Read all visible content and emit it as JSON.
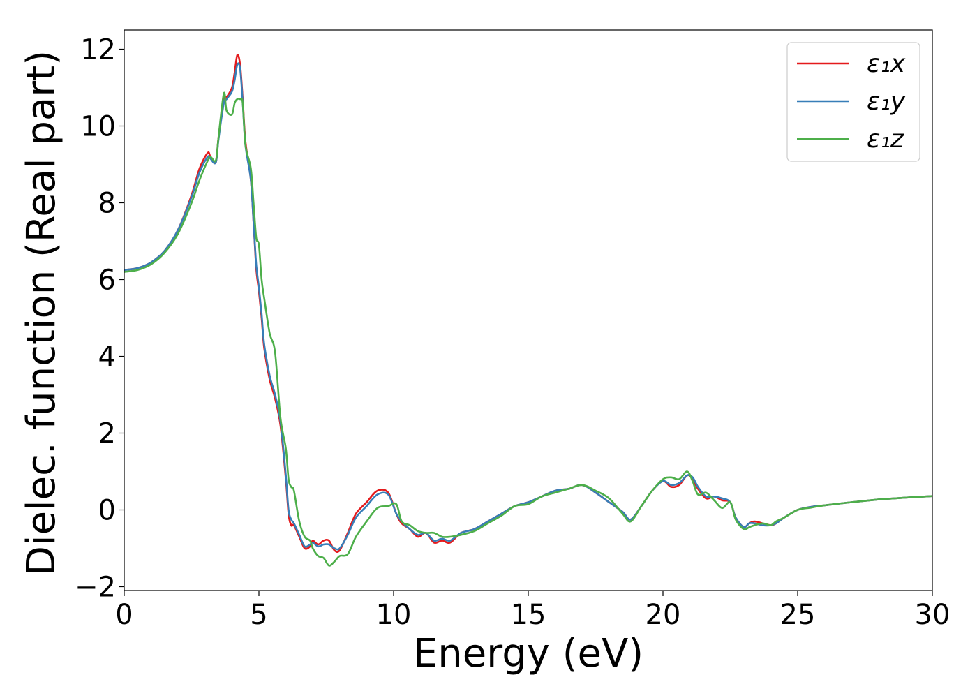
{
  "chart_data": {
    "type": "line",
    "xlabel": "Energy (eV)",
    "ylabel": "Dielec. function (Real part)",
    "xlim": [
      0,
      30
    ],
    "ylim": [
      -2.1,
      12.5
    ],
    "xticks": [
      0,
      5,
      10,
      15,
      20,
      25,
      30
    ],
    "yticks": [
      -2,
      0,
      2,
      4,
      6,
      8,
      10,
      12
    ],
    "xtick_labels": [
      "0",
      "5",
      "10",
      "15",
      "20",
      "25",
      "30"
    ],
    "ytick_labels": [
      "−2",
      "0",
      "2",
      "4",
      "6",
      "8",
      "10",
      "12"
    ],
    "grid": false,
    "legend_position": "top-right",
    "series": [
      {
        "name": "ε₁x",
        "color": "#e41a1c",
        "x": [
          0,
          0.5,
          1,
          1.5,
          2,
          2.5,
          2.8,
          3.1,
          3.2,
          3.4,
          3.5,
          3.7,
          3.8,
          4.0,
          4.1,
          4.2,
          4.3,
          4.4,
          4.5,
          4.7,
          4.8,
          4.9,
          5.0,
          5.1,
          5.2,
          5.4,
          5.6,
          5.8,
          6.0,
          6.1,
          6.2,
          6.3,
          6.5,
          6.7,
          6.9,
          7.0,
          7.2,
          7.4,
          7.6,
          7.8,
          8.0,
          8.3,
          8.6,
          9.0,
          9.4,
          9.8,
          10.1,
          10.3,
          10.6,
          10.9,
          11.2,
          11.5,
          11.8,
          12.1,
          12.5,
          13.0,
          13.5,
          14.0,
          14.5,
          15.0,
          15.5,
          16.0,
          16.5,
          17.0,
          17.5,
          18.0,
          18.5,
          18.8,
          19.2,
          19.6,
          20.0,
          20.3,
          20.6,
          20.9,
          21.1,
          21.3,
          21.6,
          21.9,
          22.2,
          22.5,
          22.7,
          23.0,
          23.2,
          23.4,
          23.7,
          24.0,
          24.2,
          24.5,
          25.0,
          25.5,
          26.0,
          27.0,
          28.0,
          29.0,
          30.0
        ],
        "y": [
          6.25,
          6.3,
          6.45,
          6.75,
          7.3,
          8.2,
          8.9,
          9.3,
          9.2,
          9.05,
          9.7,
          10.7,
          10.75,
          11.0,
          11.4,
          11.85,
          11.6,
          10.7,
          9.6,
          8.6,
          7.5,
          6.3,
          5.7,
          5.0,
          4.2,
          3.4,
          2.9,
          2.2,
          0.8,
          -0.1,
          -0.4,
          -0.4,
          -0.7,
          -1.0,
          -0.95,
          -0.8,
          -0.9,
          -0.8,
          -0.8,
          -1.05,
          -1.05,
          -0.6,
          -0.1,
          0.2,
          0.5,
          0.45,
          -0.1,
          -0.35,
          -0.5,
          -0.7,
          -0.6,
          -0.85,
          -0.8,
          -0.85,
          -0.6,
          -0.5,
          -0.3,
          -0.1,
          0.1,
          0.2,
          0.35,
          0.5,
          0.55,
          0.65,
          0.45,
          0.2,
          -0.05,
          -0.25,
          0.1,
          0.5,
          0.75,
          0.6,
          0.65,
          0.9,
          0.8,
          0.55,
          0.3,
          0.35,
          0.25,
          0.2,
          -0.2,
          -0.45,
          -0.35,
          -0.3,
          -0.35,
          -0.4,
          -0.35,
          -0.2,
          0.0,
          0.08,
          0.12,
          0.2,
          0.27,
          0.32,
          0.36
        ]
      },
      {
        "name": "ε₁y",
        "color": "#377eb8",
        "x": [
          0,
          0.5,
          1,
          1.5,
          2,
          2.5,
          2.8,
          3.1,
          3.2,
          3.4,
          3.5,
          3.7,
          3.8,
          4.0,
          4.1,
          4.2,
          4.3,
          4.4,
          4.5,
          4.7,
          4.8,
          4.9,
          5.0,
          5.1,
          5.2,
          5.4,
          5.6,
          5.8,
          6.0,
          6.1,
          6.2,
          6.3,
          6.5,
          6.7,
          6.9,
          7.0,
          7.2,
          7.4,
          7.6,
          7.8,
          8.0,
          8.3,
          8.6,
          9.0,
          9.4,
          9.8,
          10.1,
          10.3,
          10.6,
          10.9,
          11.2,
          11.5,
          11.8,
          12.1,
          12.5,
          13.0,
          13.5,
          14.0,
          14.5,
          15.0,
          15.5,
          16.0,
          16.5,
          17.0,
          17.5,
          18.0,
          18.5,
          18.8,
          19.2,
          19.6,
          20.0,
          20.3,
          20.6,
          20.9,
          21.1,
          21.3,
          21.6,
          21.9,
          22.2,
          22.5,
          22.7,
          23.0,
          23.2,
          23.4,
          23.7,
          24.0,
          24.2,
          24.5,
          25.0,
          25.5,
          26.0,
          27.0,
          28.0,
          29.0,
          30.0
        ],
        "y": [
          6.25,
          6.3,
          6.45,
          6.75,
          7.3,
          8.15,
          8.8,
          9.2,
          9.15,
          9.05,
          9.65,
          10.6,
          10.7,
          10.9,
          11.2,
          11.6,
          11.5,
          10.6,
          9.5,
          8.6,
          7.5,
          6.4,
          5.8,
          5.1,
          4.3,
          3.5,
          3.0,
          2.3,
          0.9,
          0.0,
          -0.25,
          -0.35,
          -0.65,
          -0.95,
          -0.9,
          -0.85,
          -0.95,
          -0.9,
          -0.9,
          -1.0,
          -1.0,
          -0.65,
          -0.2,
          0.1,
          0.4,
          0.4,
          -0.1,
          -0.3,
          -0.5,
          -0.65,
          -0.6,
          -0.8,
          -0.75,
          -0.8,
          -0.6,
          -0.5,
          -0.3,
          -0.1,
          0.1,
          0.2,
          0.35,
          0.5,
          0.55,
          0.65,
          0.45,
          0.2,
          -0.05,
          -0.25,
          0.1,
          0.5,
          0.75,
          0.65,
          0.7,
          0.9,
          0.85,
          0.6,
          0.35,
          0.35,
          0.3,
          0.2,
          -0.2,
          -0.45,
          -0.35,
          -0.35,
          -0.4,
          -0.4,
          -0.35,
          -0.2,
          0.0,
          0.08,
          0.12,
          0.2,
          0.27,
          0.32,
          0.36
        ]
      },
      {
        "name": "ε₁z",
        "color": "#4daf4a",
        "x": [
          0,
          0.5,
          1,
          1.5,
          2,
          2.5,
          2.8,
          3.1,
          3.2,
          3.4,
          3.5,
          3.7,
          3.8,
          4.0,
          4.1,
          4.2,
          4.3,
          4.4,
          4.5,
          4.7,
          4.8,
          4.9,
          5.0,
          5.1,
          5.2,
          5.4,
          5.6,
          5.8,
          6.0,
          6.1,
          6.2,
          6.3,
          6.5,
          6.7,
          6.9,
          7.0,
          7.2,
          7.4,
          7.6,
          7.8,
          8.0,
          8.3,
          8.6,
          9.0,
          9.4,
          9.8,
          10.1,
          10.3,
          10.6,
          10.9,
          11.2,
          11.5,
          11.8,
          12.1,
          12.5,
          13.0,
          13.5,
          14.0,
          14.5,
          15.0,
          15.5,
          16.0,
          16.5,
          17.0,
          17.5,
          18.0,
          18.5,
          18.8,
          19.2,
          19.6,
          20.0,
          20.3,
          20.6,
          20.9,
          21.1,
          21.3,
          21.6,
          21.9,
          22.2,
          22.5,
          22.7,
          23.0,
          23.2,
          23.4,
          23.7,
          24.0,
          24.2,
          24.5,
          25.0,
          25.5,
          26.0,
          27.0,
          28.0,
          29.0,
          30.0
        ],
        "y": [
          6.2,
          6.25,
          6.4,
          6.7,
          7.2,
          8.0,
          8.6,
          9.1,
          9.2,
          9.1,
          9.7,
          10.85,
          10.4,
          10.3,
          10.6,
          10.7,
          10.7,
          10.6,
          9.5,
          8.9,
          8.0,
          7.1,
          6.9,
          6.0,
          5.5,
          4.6,
          4.1,
          2.4,
          1.6,
          0.8,
          0.6,
          0.5,
          -0.3,
          -0.7,
          -0.8,
          -1.0,
          -1.2,
          -1.25,
          -1.45,
          -1.35,
          -1.2,
          -1.15,
          -0.7,
          -0.3,
          0.05,
          0.1,
          0.15,
          -0.3,
          -0.4,
          -0.55,
          -0.6,
          -0.6,
          -0.7,
          -0.7,
          -0.65,
          -0.55,
          -0.35,
          -0.15,
          0.1,
          0.15,
          0.35,
          0.45,
          0.55,
          0.65,
          0.5,
          0.3,
          -0.1,
          -0.3,
          0.1,
          0.5,
          0.8,
          0.85,
          0.8,
          1.0,
          0.75,
          0.4,
          0.45,
          0.25,
          0.05,
          0.2,
          -0.25,
          -0.5,
          -0.45,
          -0.4,
          -0.35,
          -0.4,
          -0.3,
          -0.2,
          0.0,
          0.06,
          0.12,
          0.2,
          0.27,
          0.32,
          0.36
        ]
      }
    ]
  }
}
